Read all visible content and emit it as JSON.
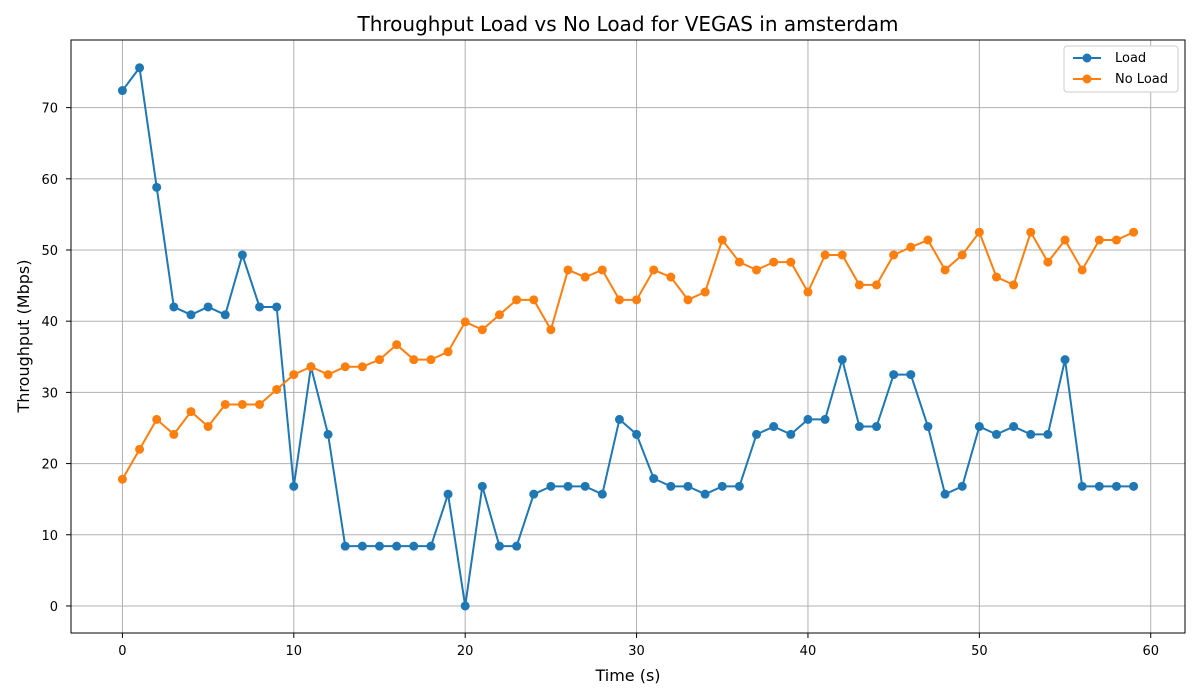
{
  "chart_data": {
    "type": "line",
    "title": "Throughput Load vs No Load for VEGAS in amsterdam",
    "xlabel": "Time (s)",
    "ylabel": "Throughput (Mbps)",
    "xlim": [
      -3,
      62
    ],
    "ylim": [
      -3.8,
      79.5
    ],
    "xticks": [
      0,
      10,
      20,
      30,
      40,
      50,
      60
    ],
    "yticks": [
      0,
      10,
      20,
      30,
      40,
      50,
      60,
      70
    ],
    "grid": true,
    "legend_position": "top-right",
    "x": [
      0,
      1,
      2,
      3,
      4,
      5,
      6,
      7,
      8,
      9,
      10,
      11,
      12,
      13,
      14,
      15,
      16,
      17,
      18,
      19,
      20,
      21,
      22,
      23,
      24,
      25,
      26,
      27,
      28,
      29,
      30,
      31,
      32,
      33,
      34,
      35,
      36,
      37,
      38,
      39,
      40,
      41,
      42,
      43,
      44,
      45,
      46,
      47,
      48,
      49,
      50,
      51,
      52,
      53,
      54,
      55,
      56,
      57,
      58,
      59
    ],
    "series": [
      {
        "name": "Load",
        "color": "#1f77b4",
        "values": [
          72.4,
          75.6,
          58.8,
          42.0,
          40.9,
          42.0,
          40.9,
          49.3,
          42.0,
          42.0,
          16.8,
          33.6,
          24.1,
          8.4,
          8.4,
          8.4,
          8.4,
          8.4,
          8.4,
          15.7,
          0.0,
          16.8,
          8.4,
          8.4,
          15.7,
          16.8,
          16.8,
          16.8,
          15.7,
          26.2,
          24.1,
          17.9,
          16.8,
          16.8,
          15.7,
          16.8,
          16.8,
          24.1,
          25.2,
          24.1,
          26.2,
          26.2,
          34.6,
          25.2,
          25.2,
          32.5,
          32.5,
          25.2,
          15.7,
          16.8,
          25.2,
          24.1,
          25.2,
          24.1,
          24.1,
          34.6,
          16.8,
          16.8,
          16.8,
          16.8
        ]
      },
      {
        "name": "No Load",
        "color": "#ff7f0e",
        "values": [
          17.8,
          22.0,
          26.2,
          24.1,
          27.3,
          25.2,
          28.3,
          28.3,
          28.3,
          30.4,
          32.5,
          33.6,
          32.5,
          33.6,
          33.6,
          34.6,
          36.7,
          34.6,
          34.6,
          35.7,
          39.9,
          38.8,
          40.9,
          43.0,
          43.0,
          38.8,
          47.2,
          46.2,
          47.2,
          43.0,
          43.0,
          47.2,
          46.2,
          43.0,
          44.1,
          51.4,
          48.3,
          47.2,
          48.3,
          48.3,
          44.1,
          49.3,
          49.3,
          45.1,
          45.1,
          49.3,
          50.4,
          51.4,
          47.2,
          49.3,
          52.5,
          46.2,
          45.1,
          52.5,
          48.3,
          51.4,
          47.2,
          51.4,
          51.4,
          52.5
        ]
      }
    ]
  }
}
